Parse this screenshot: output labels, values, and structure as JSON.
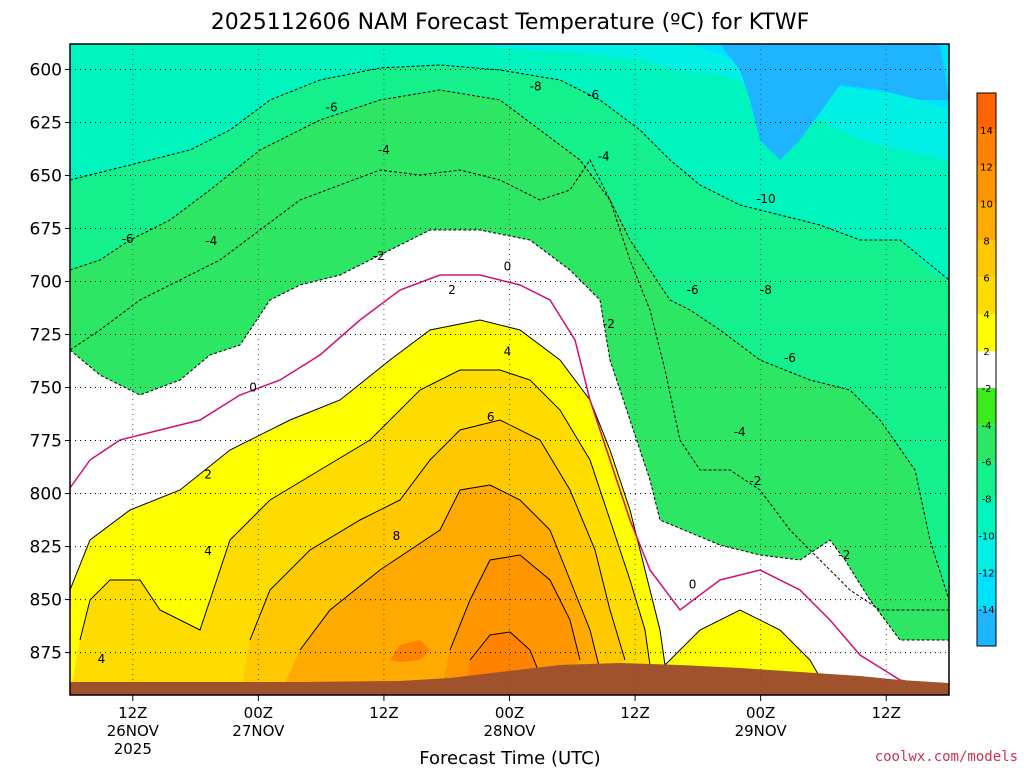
{
  "chart_data": {
    "type": "heatmap",
    "title": "2025112606 NAM Forecast Temperature (ºC) for KTWF",
    "xlabel": "Forecast Time (UTC)",
    "ylabel": "",
    "y_axis": {
      "ticks": [
        600,
        625,
        650,
        675,
        700,
        725,
        750,
        775,
        800,
        825,
        850,
        875
      ],
      "range": [
        588,
        895
      ],
      "direction": "inverted"
    },
    "x_axis": {
      "range_hours": [
        6,
        90
      ],
      "ticks": [
        {
          "hour": 12,
          "line1": "12Z",
          "line2": "26NOV",
          "line3": "2025"
        },
        {
          "hour": 24,
          "line1": "00Z",
          "line2": "27NOV",
          "line3": ""
        },
        {
          "hour": 36,
          "line1": "12Z",
          "line2": "",
          "line3": ""
        },
        {
          "hour": 48,
          "line1": "00Z",
          "line2": "28NOV",
          "line3": ""
        },
        {
          "hour": 60,
          "line1": "12Z",
          "line2": "",
          "line3": ""
        },
        {
          "hour": 72,
          "line1": "00Z",
          "line2": "29NOV",
          "line3": ""
        },
        {
          "hour": 84,
          "line1": "12Z",
          "line2": "",
          "line3": ""
        }
      ]
    },
    "grid": true,
    "colorbar": {
      "position": "right",
      "bins": [
        {
          "label": "",
          "color": "#1eb4ff"
        },
        {
          "label": "-14",
          "color": "#00e1ff"
        },
        {
          "label": "-12",
          "color": "#00f0e6"
        },
        {
          "label": "-10",
          "color": "#00f5be"
        },
        {
          "label": "-8",
          "color": "#14f08c"
        },
        {
          "label": "-6",
          "color": "#2de664"
        },
        {
          "label": "-4",
          "color": "#3ceb1e"
        },
        {
          "label": "-2",
          "color": "#ffffff"
        },
        {
          "label": "2",
          "color": "#ffff00"
        },
        {
          "label": "4",
          "color": "#ffdc00"
        },
        {
          "label": "6",
          "color": "#ffc800"
        },
        {
          "label": "8",
          "color": "#ffaa00"
        },
        {
          "label": "10",
          "color": "#ff9600"
        },
        {
          "label": "12",
          "color": "#ff8200"
        },
        {
          "label": "14",
          "color": "#ff6400"
        }
      ]
    },
    "terrain_color": "#a0522d",
    "zero_contour_color": "#cc1177",
    "contour_labels": [
      {
        "t": -8,
        "x": 50.5,
        "p": 608
      },
      {
        "t": -6,
        "x": 31,
        "p": 618
      },
      {
        "t": -6,
        "x": 56,
        "p": 612
      },
      {
        "t": -4,
        "x": 36,
        "p": 638
      },
      {
        "t": -4,
        "x": 57,
        "p": 641
      },
      {
        "t": -6,
        "x": 11.5,
        "p": 680
      },
      {
        "t": -4,
        "x": 19.5,
        "p": 681
      },
      {
        "t": -2,
        "x": 35.5,
        "p": 688
      },
      {
        "t": 0,
        "x": 47.8,
        "p": 693
      },
      {
        "t": -10,
        "x": 72.5,
        "p": 661
      },
      {
        "t": 2,
        "x": 42.5,
        "p": 704
      },
      {
        "t": -6,
        "x": 65.5,
        "p": 704
      },
      {
        "t": -8,
        "x": 72.5,
        "p": 704
      },
      {
        "t": -2,
        "x": 57.5,
        "p": 720
      },
      {
        "t": 4,
        "x": 47.8,
        "p": 733
      },
      {
        "t": -6,
        "x": 74.8,
        "p": 736
      },
      {
        "t": 0,
        "x": 23.5,
        "p": 750
      },
      {
        "t": 6,
        "x": 46.2,
        "p": 764
      },
      {
        "t": -4,
        "x": 70,
        "p": 771
      },
      {
        "t": 2,
        "x": 19.2,
        "p": 791
      },
      {
        "t": -2,
        "x": 71.5,
        "p": 794
      },
      {
        "t": 8,
        "x": 37.2,
        "p": 820
      },
      {
        "t": 4,
        "x": 19.2,
        "p": 827
      },
      {
        "t": -2,
        "x": 80,
        "p": 829
      },
      {
        "t": 0,
        "x": 65.5,
        "p": 843
      },
      {
        "t": 4,
        "x": 9,
        "p": 878
      }
    ],
    "credit": "coolwx.com/models"
  }
}
